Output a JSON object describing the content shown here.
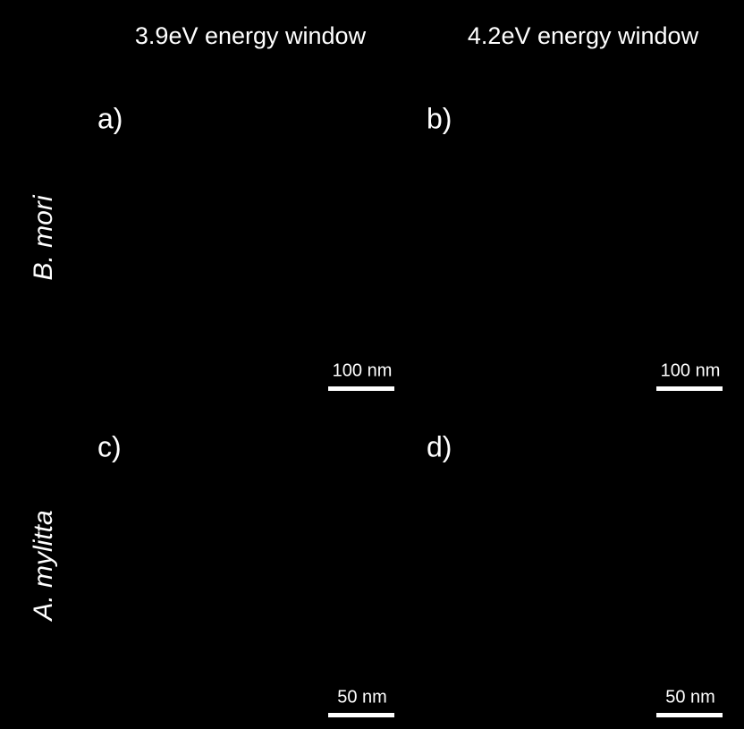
{
  "column_headers": [
    "3.9eV energy window",
    "4.2eV energy window"
  ],
  "row_labels": [
    "B. mori",
    "A. mylitta"
  ],
  "panels": [
    {
      "label": "a)",
      "scale_bar": "100 nm"
    },
    {
      "label": "b)",
      "scale_bar": "100 nm"
    },
    {
      "label": "c)",
      "scale_bar": "50 nm"
    },
    {
      "label": "d)",
      "scale_bar": "50 nm"
    }
  ]
}
